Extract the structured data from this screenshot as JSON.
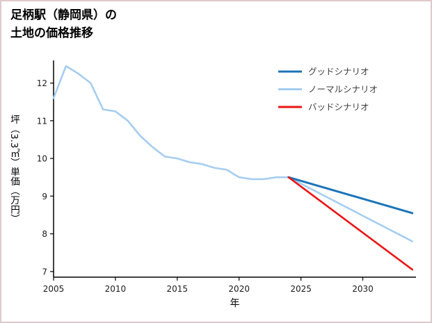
{
  "page": {
    "title_lines": [
      "足柄駅（静岡県）の",
      "土地の価格推移"
    ]
  },
  "chart_data": {
    "type": "line",
    "title": "足柄駅（静岡県）の土地の価格推移",
    "xlabel": "年",
    "ylabel": "坪（3.3㎡）単価（万円）",
    "xlim": [
      2005,
      2034.3
    ],
    "ylim": [
      6.85,
      12.6
    ],
    "xticks": [
      2005,
      2010,
      2015,
      2020,
      2025,
      2030
    ],
    "yticks": [
      7,
      8,
      9,
      10,
      11,
      12
    ],
    "grid": false,
    "legend_position": "upper right",
    "axis_color": "#000000",
    "series": [
      {
        "name": "グッドシナリオ",
        "slug": "good-scenario",
        "color": "#1b74b8",
        "width": 3,
        "x": [
          2024,
          2034
        ],
        "y": [
          9.5,
          8.55
        ]
      },
      {
        "name": "ノーマルシナリオ",
        "slug": "normal-scenario",
        "color": "#a5cdf0",
        "width": 2.6,
        "x": [
          2005,
          2006,
          2007,
          2008,
          2009,
          2010,
          2011,
          2012,
          2013,
          2014,
          2015,
          2016,
          2017,
          2018,
          2019,
          2020,
          2021,
          2022,
          2023,
          2024,
          2025,
          2026,
          2027,
          2028,
          2029,
          2030,
          2031,
          2032,
          2033,
          2034
        ],
        "y": [
          11.6,
          12.45,
          12.25,
          12.0,
          11.3,
          11.25,
          11.0,
          10.6,
          10.3,
          10.05,
          10.0,
          9.9,
          9.85,
          9.75,
          9.7,
          9.5,
          9.45,
          9.45,
          9.5,
          9.5,
          9.33,
          9.16,
          8.99,
          8.82,
          8.65,
          8.48,
          8.31,
          8.14,
          7.97,
          7.8
        ]
      },
      {
        "name": "バッドシナリオ",
        "slug": "bad-scenario",
        "color": "#ea1414",
        "width": 2.6,
        "x": [
          2024,
          2034
        ],
        "y": [
          9.5,
          7.05
        ]
      }
    ]
  }
}
